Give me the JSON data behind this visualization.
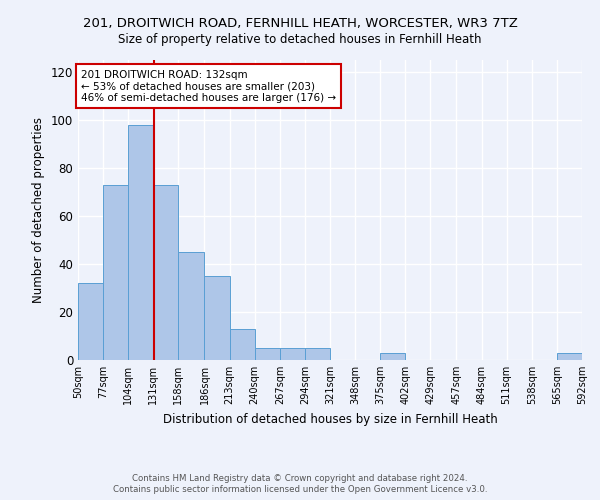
{
  "title": "201, DROITWICH ROAD, FERNHILL HEATH, WORCESTER, WR3 7TZ",
  "subtitle": "Size of property relative to detached houses in Fernhill Heath",
  "xlabel": "Distribution of detached houses by size in Fernhill Heath",
  "ylabel": "Number of detached properties",
  "footer_line1": "Contains HM Land Registry data © Crown copyright and database right 2024.",
  "footer_line2": "Contains public sector information licensed under the Open Government Licence v3.0.",
  "annotation_line1": "201 DROITWICH ROAD: 132sqm",
  "annotation_line2": "← 53% of detached houses are smaller (203)",
  "annotation_line3": "46% of semi-detached houses are larger (176) →",
  "property_size": 132,
  "bin_edges": [
    50,
    77,
    104,
    131,
    158,
    186,
    213,
    240,
    267,
    294,
    321,
    348,
    375,
    402,
    429,
    457,
    484,
    511,
    538,
    565,
    592
  ],
  "bar_heights": [
    32,
    73,
    98,
    73,
    45,
    35,
    13,
    5,
    5,
    5,
    0,
    0,
    3,
    0,
    0,
    0,
    0,
    0,
    0,
    3
  ],
  "bar_color": "#aec6e8",
  "bar_edge_color": "#5a9fd4",
  "ref_line_color": "#cc0000",
  "annotation_box_color": "#cc0000",
  "background_color": "#eef2fb",
  "grid_color": "#ffffff",
  "ylim": [
    0,
    125
  ],
  "yticks": [
    0,
    20,
    40,
    60,
    80,
    100,
    120
  ]
}
